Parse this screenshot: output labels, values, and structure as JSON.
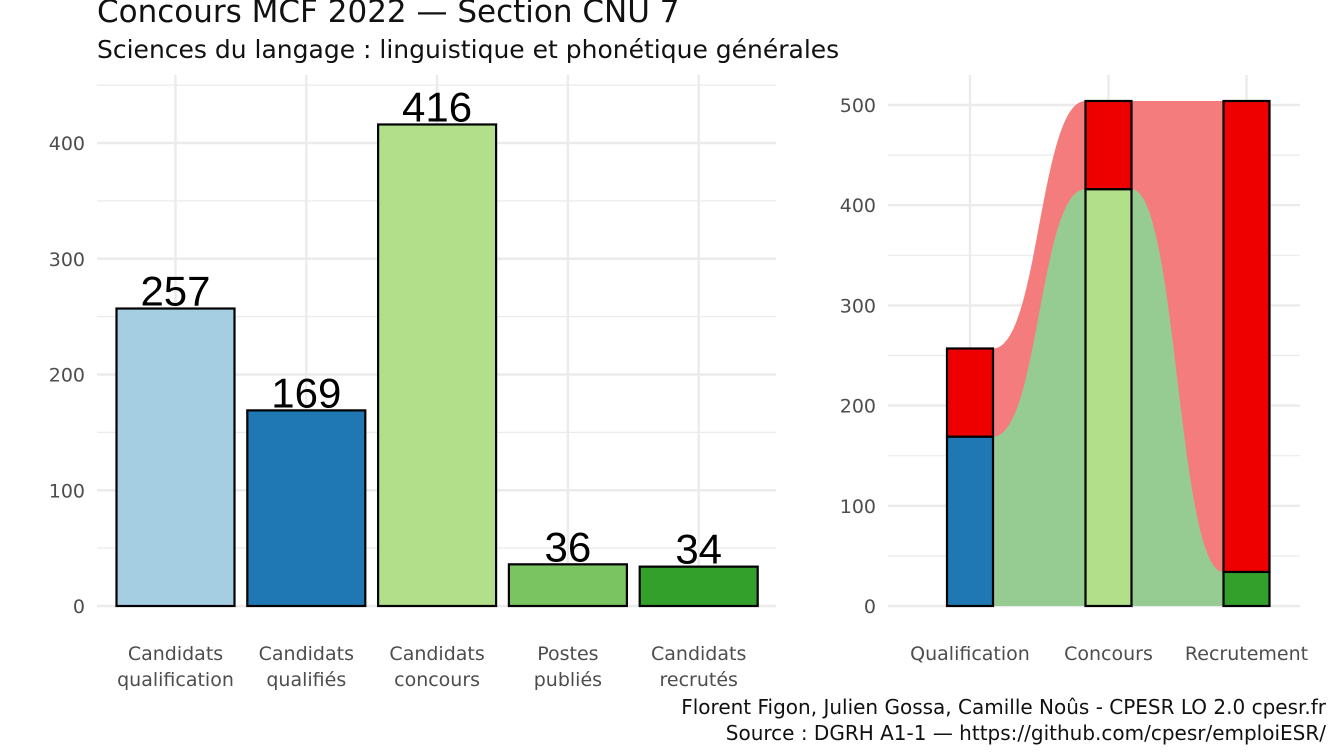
{
  "title": "Concours MCF  2022  —  Section CNU 7",
  "subtitle": "Sciences du langage : linguistique et phonétique générales",
  "caption": {
    "line1": "Florent Figon, Julien Gossa, Camille Noûs - CPESR LO 2.0 cpesr.fr",
    "line2": "Source : DGRH A1-1 — https://github.com/cpesr/emploiESR/"
  },
  "colors": {
    "qualification": "#a6cee3",
    "qualifies": "#1f78b4",
    "concours": "#b2df8a",
    "postes": "#7bc462",
    "recrutes": "#33a02c",
    "rejected": "#ee0000",
    "flow_red": "#f47c7c",
    "flow_green": "#96cc92"
  },
  "chart_data": [
    {
      "type": "bar",
      "categories": [
        [
          "Candidats",
          "qualification"
        ],
        [
          "Candidats",
          "qualifiés"
        ],
        [
          "Candidats",
          "concours"
        ],
        [
          "Postes",
          "publiés"
        ],
        [
          "Candidats",
          "recrutés"
        ]
      ],
      "values": [
        257,
        169,
        416,
        36,
        34
      ],
      "data_labels": [
        "257",
        "169",
        "416",
        "36",
        "34"
      ],
      "bar_colors": [
        "#a6cee3",
        "#1f78b4",
        "#b2df8a",
        "#7bc462",
        "#33a02c"
      ],
      "ylim": [
        0,
        450
      ],
      "yticks": [
        0,
        100,
        200,
        300,
        400
      ],
      "ytick_labels": [
        "0",
        "100",
        "200",
        "300",
        "400"
      ],
      "grid": true
    },
    {
      "type": "bar",
      "stacked": true,
      "categories": [
        "Qualification",
        "Concours",
        "Recrutement"
      ],
      "series": [
        {
          "values": [
            169,
            416,
            34
          ],
          "colors": [
            "#1f78b4",
            "#b2df8a",
            "#33a02c"
          ]
        },
        {
          "values": [
            88,
            88,
            470
          ],
          "colors": [
            "#ee0000",
            "#ee0000",
            "#ee0000"
          ]
        }
      ],
      "ylim": [
        0,
        510
      ],
      "yticks": [
        0,
        100,
        200,
        300,
        400,
        500
      ],
      "ytick_labels": [
        "0",
        "100",
        "200",
        "300",
        "400",
        "500"
      ],
      "grid": true
    }
  ]
}
